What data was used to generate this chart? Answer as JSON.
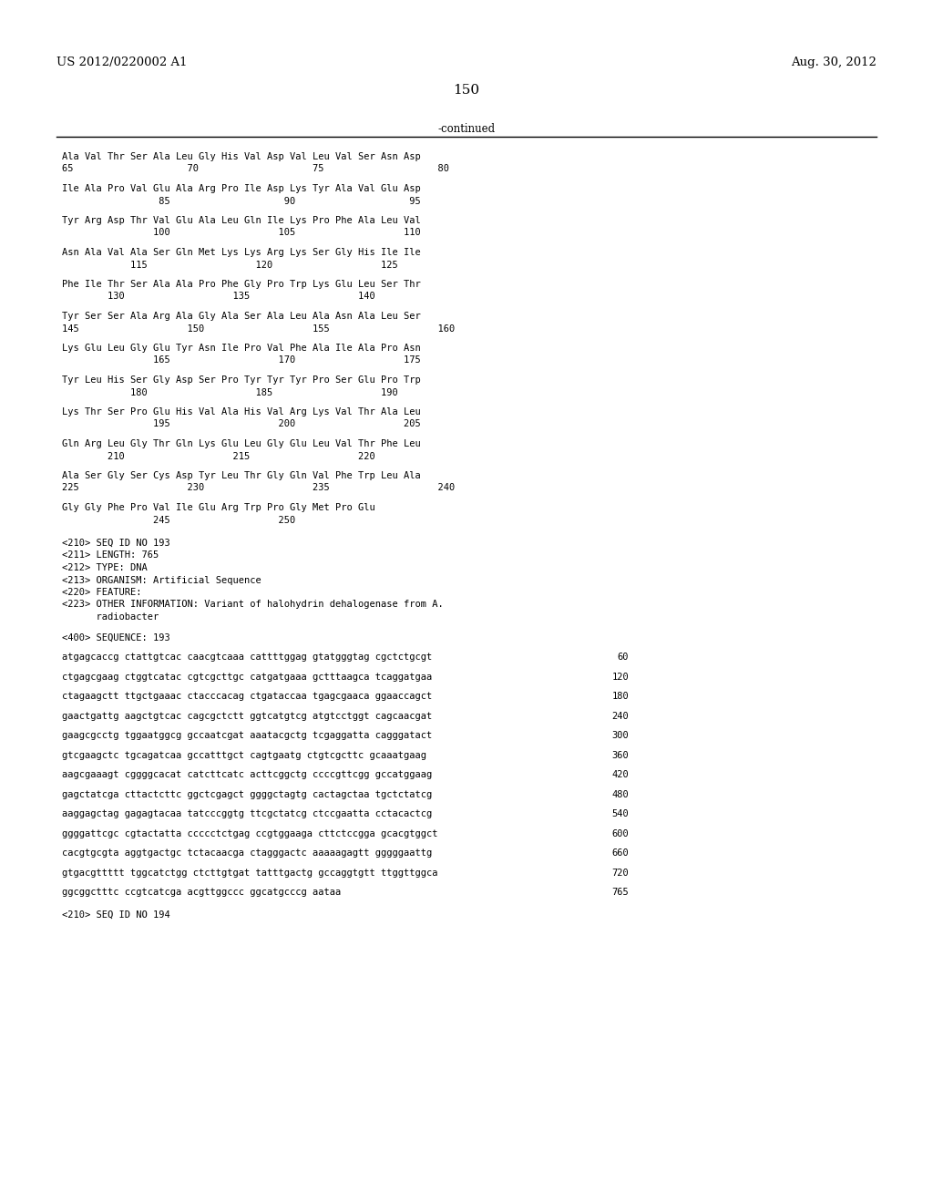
{
  "header_left": "US 2012/0220002 A1",
  "header_right": "Aug. 30, 2012",
  "page_number": "150",
  "continued_label": "-continued",
  "background_color": "#ffffff",
  "text_color": "#000000",
  "sequence_blocks": [
    {
      "seq_line": "Ala Val Thr Ser Ala Leu Gly His Val Asp Val Leu Val Ser Asn Asp",
      "num_line": "65                    70                    75                    80"
    },
    {
      "seq_line": "Ile Ala Pro Val Glu Ala Arg Pro Ile Asp Lys Tyr Ala Val Glu Asp",
      "num_line": "                 85                    90                    95"
    },
    {
      "seq_line": "Tyr Arg Asp Thr Val Glu Ala Leu Gln Ile Lys Pro Phe Ala Leu Val",
      "num_line": "                100                   105                   110"
    },
    {
      "seq_line": "Asn Ala Val Ala Ser Gln Met Lys Lys Arg Lys Ser Gly His Ile Ile",
      "num_line": "            115                   120                   125"
    },
    {
      "seq_line": "Phe Ile Thr Ser Ala Ala Pro Phe Gly Pro Trp Lys Glu Leu Ser Thr",
      "num_line": "        130                   135                   140"
    },
    {
      "seq_line": "Tyr Ser Ser Ala Arg Ala Gly Ala Ser Ala Leu Ala Asn Ala Leu Ser",
      "num_line": "145                   150                   155                   160"
    },
    {
      "seq_line": "Lys Glu Leu Gly Glu Tyr Asn Ile Pro Val Phe Ala Ile Ala Pro Asn",
      "num_line": "                165                   170                   175"
    },
    {
      "seq_line": "Tyr Leu His Ser Gly Asp Ser Pro Tyr Tyr Tyr Pro Ser Glu Pro Trp",
      "num_line": "            180                   185                   190"
    },
    {
      "seq_line": "Lys Thr Ser Pro Glu His Val Ala His Val Arg Lys Val Thr Ala Leu",
      "num_line": "                195                   200                   205"
    },
    {
      "seq_line": "Gln Arg Leu Gly Thr Gln Lys Glu Leu Gly Glu Leu Val Thr Phe Leu",
      "num_line": "        210                   215                   220"
    },
    {
      "seq_line": "Ala Ser Gly Ser Cys Asp Tyr Leu Thr Gly Gln Val Phe Trp Leu Ala",
      "num_line": "225                   230                   235                   240"
    },
    {
      "seq_line": "Gly Gly Phe Pro Val Ile Glu Arg Trp Pro Gly Met Pro Glu",
      "num_line": "                245                   250"
    }
  ],
  "metadata_lines": [
    "<210> SEQ ID NO 193",
    "<211> LENGTH: 765",
    "<212> TYPE: DNA",
    "<213> ORGANISM: Artificial Sequence",
    "<220> FEATURE:",
    "<223> OTHER INFORMATION: Variant of halohydrin dehalogenase from A.",
    "      radiobacter",
    "",
    "<400> SEQUENCE: 193"
  ],
  "dna_blocks": [
    {
      "seq": "atgagcaccg ctattgtcac caacgtcaaa cattttggag gtatgggtag cgctctgcgt",
      "num": "60"
    },
    {
      "seq": "ctgagcgaag ctggtcatac cgtcgcttgc catgatgaaa gctttaagca tcaggatgaa",
      "num": "120"
    },
    {
      "seq": "ctagaagctt ttgctgaaac ctacccacag ctgataccaa tgagcgaaca ggaaccagct",
      "num": "180"
    },
    {
      "seq": "gaactgattg aagctgtcac cagcgctctt ggtcatgtcg atgtcctggt cagcaacgat",
      "num": "240"
    },
    {
      "seq": "gaagcgcctg tggaatggcg gccaatcgat aaatacgctg tcgaggatta cagggatact",
      "num": "300"
    },
    {
      "seq": "gtcgaagctc tgcagatcaa gccatttgct cagtgaatg ctgtcgcttc gcaaatgaag",
      "num": "360"
    },
    {
      "seq": "aagcgaaagt cggggcacat catcttcatc acttcggctg ccccgttcgg gccatggaag",
      "num": "420"
    },
    {
      "seq": "gagctatcga cttactcttc ggctcgagct ggggctagtg cactagctaa tgctctatcg",
      "num": "480"
    },
    {
      "seq": "aaggagctag gagagtacaa tatcccggtg ttcgctatcg ctccgaatta cctacactcg",
      "num": "540"
    },
    {
      "seq": "ggggattcgc cgtactatta ccccctctgag ccgtggaaga cttctccgga gcacgtggct",
      "num": "600"
    },
    {
      "seq": "cacgtgcgta aggtgactgc tctacaacga ctagggactc aaaaagagtt gggggaattg",
      "num": "660"
    },
    {
      "seq": "gtgacgttttt tggcatctgg ctcttgtgat tatttgactg gccaggtgtt ttggttggca",
      "num": "720"
    },
    {
      "seq": "ggcggctttc ccgtcatcga acgttggccc ggcatgcccg aataa",
      "num": "765"
    }
  ],
  "last_line": "<210> SEQ ID NO 194"
}
